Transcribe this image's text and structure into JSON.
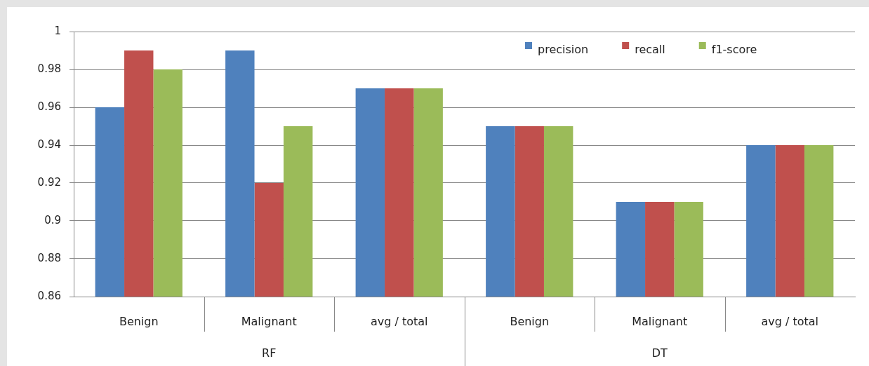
{
  "chart_data": {
    "type": "bar",
    "categories": [
      "Benign",
      "Malignant",
      "avg / total",
      "Benign",
      "Malignant",
      "avg / total"
    ],
    "series": [
      {
        "name": "precision",
        "color": "#4f81bd",
        "values": [
          0.96,
          0.99,
          0.97,
          0.95,
          0.91,
          0.94
        ]
      },
      {
        "name": "recall",
        "color": "#c0504d",
        "values": [
          0.99,
          0.92,
          0.97,
          0.95,
          0.91,
          0.94
        ]
      },
      {
        "name": "f1-score",
        "color": "#9bbb59",
        "values": [
          0.98,
          0.95,
          0.97,
          0.95,
          0.91,
          0.94
        ]
      }
    ],
    "annotations": [
      "RF",
      "DT"
    ],
    "ylim": [
      0.86,
      1
    ],
    "yticks": [
      0.86,
      0.88,
      0.9,
      0.92,
      0.94,
      0.96,
      0.98,
      1
    ],
    "grid": "y",
    "legend": "top right"
  }
}
